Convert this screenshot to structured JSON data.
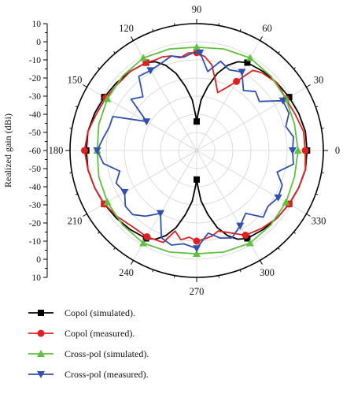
{
  "chart_data": {
    "type": "polar-line",
    "title": "",
    "ylabel": "Realized gain (dBi)",
    "rlim": [
      -60,
      10
    ],
    "r_ticks_upper": [
      "10",
      "0",
      "-10",
      "-20",
      "-30",
      "-40",
      "-50",
      "-60"
    ],
    "r_ticks_lower": [
      "-50",
      "-40",
      "-30",
      "-20",
      "-10",
      "0",
      "10"
    ],
    "angle_ticks": [
      0,
      30,
      60,
      90,
      120,
      150,
      180,
      210,
      240,
      270,
      300,
      330
    ],
    "angle_labels": [
      "0",
      "30",
      "60",
      "90",
      "120",
      "150",
      "180",
      "210",
      "240",
      "270",
      "300",
      "330"
    ],
    "grid": true,
    "legend_position": "bottom-left",
    "series": [
      {
        "name": "Copol (simulated).",
        "color": "#000000",
        "marker": "square",
        "angles": [
          0,
          10,
          20,
          30,
          40,
          50,
          60,
          65,
          70,
          75,
          80,
          85,
          88,
          90,
          92,
          95,
          100,
          105,
          110,
          115,
          120,
          130,
          140,
          150,
          160,
          170,
          180,
          190,
          200,
          210,
          220,
          230,
          240,
          245,
          250,
          255,
          260,
          265,
          268,
          270,
          272,
          275,
          280,
          285,
          290,
          295,
          300,
          310,
          320,
          330,
          340,
          350,
          360
        ],
        "values": [
          1,
          1,
          0,
          -1,
          -2,
          -3,
          -4,
          -6,
          -10,
          -16,
          -24,
          -32,
          -40,
          -44,
          -40,
          -32,
          -24,
          -16,
          -10,
          -6,
          -4,
          -3,
          -2,
          -1,
          0,
          1,
          1,
          1,
          0,
          -1,
          -2,
          -3,
          -4,
          -6,
          -10,
          -16,
          -24,
          -32,
          -40,
          -44,
          -40,
          -32,
          -24,
          -16,
          -10,
          -6,
          -4,
          -3,
          -2,
          -1,
          0,
          1,
          1
        ]
      },
      {
        "name": "Copol (measured).",
        "color": "#e02020",
        "marker": "circle",
        "angles": [
          0,
          10,
          20,
          30,
          40,
          50,
          55,
          60,
          65,
          70,
          75,
          80,
          85,
          90,
          95,
          100,
          105,
          110,
          115,
          120,
          130,
          140,
          150,
          160,
          170,
          180,
          190,
          200,
          210,
          220,
          230,
          240,
          250,
          255,
          260,
          265,
          270,
          275,
          280,
          285,
          290,
          300,
          310,
          320,
          330,
          340,
          350,
          360
        ],
        "values": [
          0,
          0,
          -2,
          -3,
          -2,
          -4,
          -6,
          -16,
          -22,
          -26,
          -20,
          -12,
          -8,
          -6,
          -6,
          -8,
          -6,
          -5,
          -5,
          -4,
          -3,
          -3,
          -2,
          -1,
          1,
          2,
          1,
          0,
          -1,
          -3,
          -5,
          -5,
          -6,
          -14,
          -10,
          -12,
          -10,
          -11,
          -12,
          -14,
          -12,
          -6,
          -4,
          -2,
          -1,
          0,
          1,
          0
        ]
      },
      {
        "name": "Cross-pol (simulated).",
        "color": "#60c040",
        "marker": "triangle-up",
        "angles": [
          0,
          15,
          30,
          45,
          60,
          75,
          90,
          105,
          120,
          135,
          150,
          165,
          180,
          195,
          210,
          225,
          240,
          255,
          270,
          285,
          300,
          315,
          330,
          345,
          360
        ],
        "values": [
          -4,
          -4,
          -3,
          -2,
          -1,
          -2,
          -3,
          -2,
          -1,
          -2,
          -3,
          -4,
          -5,
          -4,
          -3,
          -2,
          -1,
          -2,
          -3,
          -2,
          -1,
          -2,
          -3,
          -4,
          -4
        ]
      },
      {
        "name": "Cross-pol (measured).",
        "color": "#3050b0",
        "marker": "triangle-down",
        "angles": [
          0,
          8,
          15,
          22,
          30,
          38,
          45,
          52,
          60,
          68,
          75,
          82,
          88,
          92,
          98,
          105,
          112,
          120,
          128,
          135,
          142,
          150,
          158,
          165,
          172,
          180,
          188,
          195,
          202,
          210,
          218,
          225,
          232,
          240,
          248,
          255,
          262,
          270,
          278,
          285,
          292,
          300,
          308,
          315,
          322,
          330,
          338,
          345,
          352,
          360
        ],
        "values": [
          -7,
          -6,
          -9,
          -5,
          -5,
          -16,
          -14,
          -18,
          -10,
          -12,
          -9,
          -16,
          -6,
          -6,
          -8,
          -6,
          -8,
          -9,
          -8,
          -18,
          -14,
          -28,
          -10,
          -10,
          -8,
          -5,
          -8,
          -16,
          -12,
          -14,
          -10,
          -10,
          -14,
          -20,
          -8,
          -6,
          -8,
          -6,
          -14,
          -10,
          -8,
          -12,
          -16,
          -8,
          -10,
          -8,
          -9,
          -14,
          -6,
          -7
        ]
      }
    ]
  }
}
